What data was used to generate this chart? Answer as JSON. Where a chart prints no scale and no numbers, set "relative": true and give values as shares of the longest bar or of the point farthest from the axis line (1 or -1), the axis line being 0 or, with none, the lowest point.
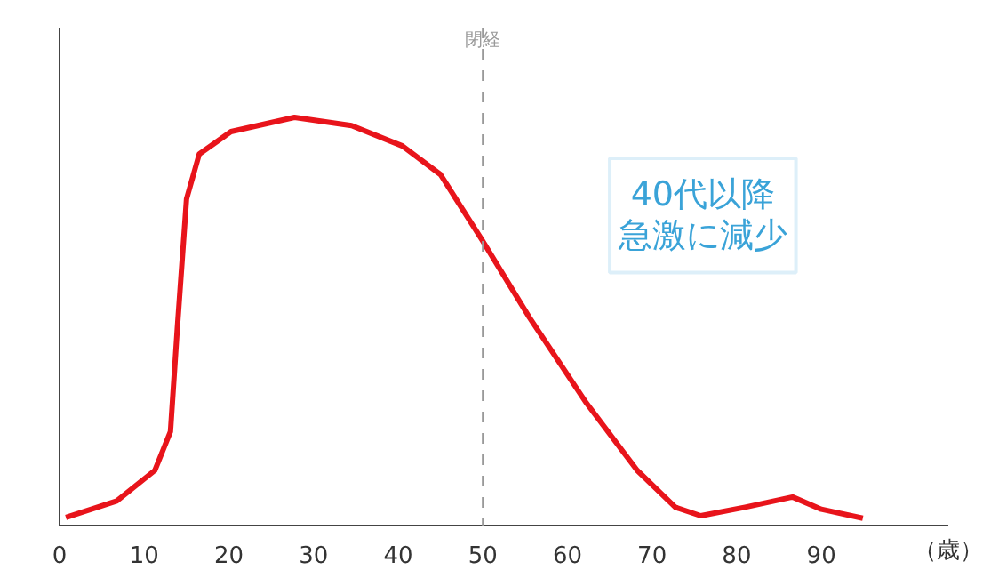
{
  "chart_data": {
    "type": "line",
    "relative": true,
    "xlabel": "（歳）",
    "tick_labels": "x",
    "grid": false,
    "line_style": "solid",
    "marker": "none",
    "xlim": [
      0,
      105
    ],
    "xticks": [
      0,
      10,
      20,
      30,
      40,
      50,
      60,
      70,
      80,
      90
    ],
    "series": [
      {
        "color": "#e8141b",
        "x": [
          0.75,
          6.75,
          11.25,
          13.1,
          13.9,
          15,
          16.5,
          20.25,
          27.75,
          34.5,
          40.5,
          45,
          49.9,
          55.5,
          62.25,
          68.25,
          72.75,
          75.75,
          81,
          86.6,
          90,
          94.9
        ],
        "values": [
          0.02,
          0.06,
          0.135,
          0.23,
          0.48,
          0.8,
          0.91,
          0.965,
          1.0,
          0.98,
          0.93,
          0.86,
          0.7,
          0.51,
          0.3,
          0.135,
          0.045,
          0.024,
          0.045,
          0.07,
          0.04,
          0.018
        ]
      }
    ],
    "ref_lines": [
      {
        "axis": "x",
        "value": 50,
        "label": "閉経",
        "color": "#999999",
        "line_style": "dashed"
      }
    ],
    "annotations": [
      "40代以降",
      "急激に減少"
    ]
  }
}
